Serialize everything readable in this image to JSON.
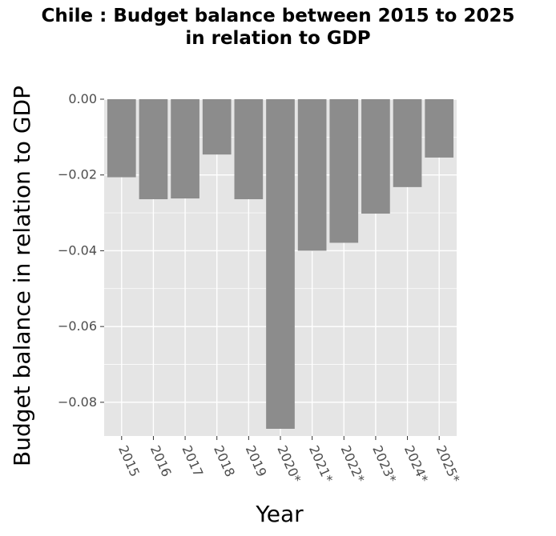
{
  "chart_data": {
    "type": "bar",
    "title": "Chile : Budget balance between 2015 to 2025 in relation to GDP",
    "title_lines": [
      "Chile : Budget balance between 2015 to 2025",
      "in relation to GDP"
    ],
    "xlabel": "Year",
    "ylabel": "Budget balance in relation to GDP",
    "categories": [
      "2015",
      "2016",
      "2017",
      "2018",
      "2019",
      "2020*",
      "2021*",
      "2022*",
      "2023*",
      "2024*",
      "2025*"
    ],
    "values": [
      -0.0206,
      -0.0264,
      -0.0262,
      -0.0146,
      -0.0264,
      -0.087,
      -0.04,
      -0.0379,
      -0.0302,
      -0.0232,
      -0.0154
    ],
    "ylim": [
      -0.0889,
      0.0
    ],
    "yticks": [
      0.0,
      -0.02,
      -0.04,
      -0.06,
      -0.08
    ],
    "ytick_labels": [
      "0.00",
      "−0.02",
      "−0.04",
      "−0.06",
      "−0.08"
    ],
    "grid": true,
    "colors": {
      "bar": "#8c8c8c",
      "panel": "#e5e5e5",
      "grid": "#ffffff"
    }
  }
}
